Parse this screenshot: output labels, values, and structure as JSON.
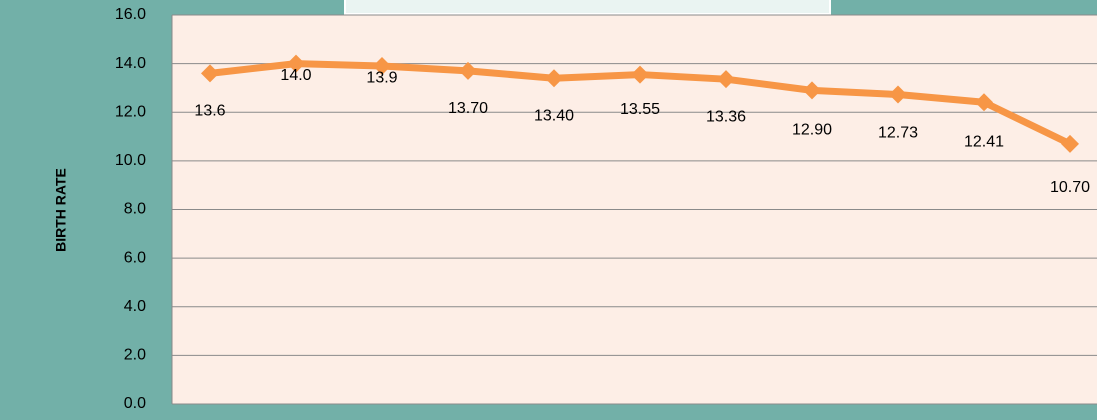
{
  "chart_data": {
    "type": "line",
    "ylabel": "BIRTH RATE",
    "series": [
      {
        "color": "#f79646",
        "values": [
          13.6,
          14.0,
          13.9,
          13.7,
          13.4,
          13.55,
          13.36,
          12.9,
          12.73,
          12.41,
          10.7
        ],
        "value_labels": [
          "13.6",
          "14.0",
          "13.9",
          "13.70",
          "13.40",
          "13.55",
          "13.36",
          "12.90",
          "12.73",
          "12.41",
          "10.70"
        ]
      }
    ],
    "ylim": [
      0,
      16
    ],
    "yticks": [
      {
        "value": 0,
        "label": "0.0"
      },
      {
        "value": 2,
        "label": "2.0"
      },
      {
        "value": 4,
        "label": "4.0"
      },
      {
        "value": 6,
        "label": "6.0"
      },
      {
        "value": 8,
        "label": "8.0"
      },
      {
        "value": 10,
        "label": "10.0"
      },
      {
        "value": 12,
        "label": "12.0"
      },
      {
        "value": 14,
        "label": "14.0"
      },
      {
        "value": 16,
        "label": "16.0"
      }
    ],
    "grid": true
  }
}
